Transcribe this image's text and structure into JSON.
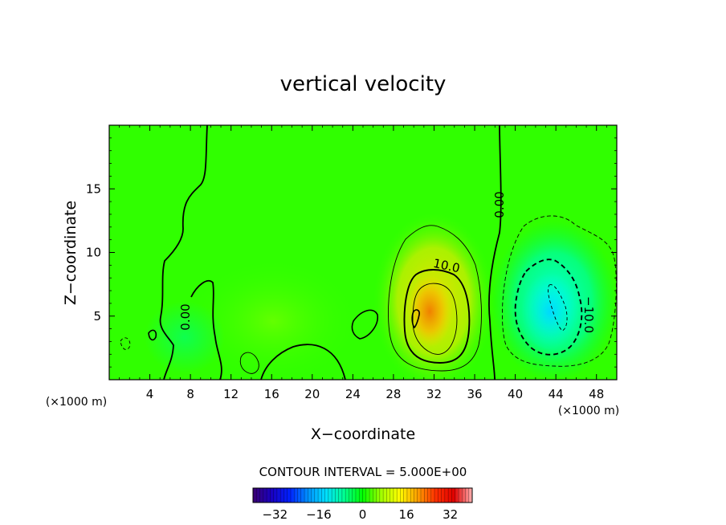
{
  "chart_data": {
    "type": "heatmap",
    "title": "vertical velocity",
    "xlabel": "X−coordinate",
    "ylabel": "Z−coordinate",
    "x_unit_label": "(×1000 m)",
    "y_unit_label": "(×1000 m)",
    "xlim": [
      0,
      50
    ],
    "ylim": [
      0,
      20
    ],
    "x_ticks": [
      4,
      8,
      12,
      16,
      20,
      24,
      28,
      32,
      36,
      40,
      44,
      48
    ],
    "x_tick_labels": [
      "4",
      "8",
      "12",
      "16",
      "20",
      "24",
      "28",
      "32",
      "36",
      "40",
      "44",
      "48"
    ],
    "y_ticks": [
      5,
      10,
      15
    ],
    "y_tick_labels": [
      "5",
      "10",
      "15"
    ],
    "contour_interval_text": "CONTOUR INTERVAL = 5.000E+00",
    "contour_labels": [
      {
        "text": "0.00",
        "x": 38.7,
        "y": 14.0
      },
      {
        "text": "10.0",
        "x": 33.0,
        "y": 8.6
      },
      {
        "text": "0.00",
        "x": 7.6,
        "y": 5.0
      },
      {
        "text": "−10.0",
        "x": 46.2,
        "y": 5.0
      }
    ],
    "features": [
      {
        "kind": "updraft",
        "x_center": 31.5,
        "z_center": 5.5,
        "peak_value": 20
      },
      {
        "kind": "downdraft",
        "x_center": 43.5,
        "z_center": 6.0,
        "peak_value": -14
      }
    ],
    "colorbar": {
      "range": [
        -40,
        40
      ],
      "ticks": [
        -32,
        -16,
        0,
        16,
        32
      ],
      "tick_labels": [
        "−32",
        "−16",
        "0",
        "16",
        "32"
      ],
      "colors": [
        "#3a0070",
        "#1a00c0",
        "#0020ff",
        "#0090ff",
        "#00e0ff",
        "#00ff90",
        "#00ff00",
        "#a0ff00",
        "#ffff00",
        "#ffa000",
        "#ff3000",
        "#e00000",
        "#ffb0b0"
      ]
    }
  }
}
